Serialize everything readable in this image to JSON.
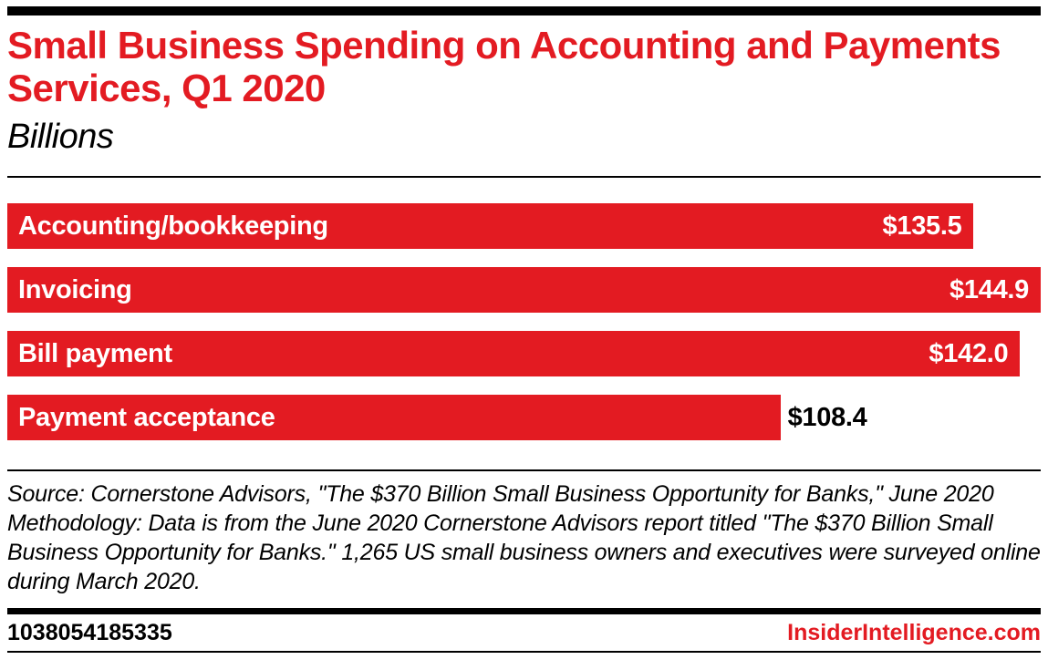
{
  "header": {
    "title": "Small Business Spending on Accounting and Payments Services, Q1 2020",
    "subtitle": "Billions"
  },
  "chart_data": {
    "type": "bar",
    "orientation": "horizontal",
    "title": "Small Business Spending on Accounting and Payments Services, Q1 2020",
    "subtitle": "Billions",
    "categories": [
      "Accounting/bookkeeping",
      "Invoicing",
      "Bill payment",
      "Payment acceptance"
    ],
    "values": [
      135.5,
      144.9,
      142.0,
      108.4
    ],
    "value_labels": [
      "$135.5",
      "$144.9",
      "$142.0",
      "$108.4"
    ],
    "value_label_position": [
      "inside",
      "inside",
      "inside",
      "outside"
    ],
    "xlim": [
      0,
      144.9
    ],
    "grid": false,
    "legend": false,
    "bar_color": "#e31b22"
  },
  "notes": {
    "source": "Source: Cornerstone Advisors, \"The $370 Billion Small Business Opportunity for Banks,\" June 2020",
    "methodology": "Methodology: Data is from the June 2020 Cornerstone Advisors report titled \"The $370 Billion Small Business Opportunity for Banks.\" 1,265 US small business owners and executives were surveyed online during March 2020."
  },
  "footer": {
    "chart_id": "1038054185335",
    "brand": "InsiderIntelligence.com"
  },
  "colors": {
    "accent_red": "#e31b22",
    "text_black": "#000000",
    "bar_text_white": "#ffffff",
    "background": "#ffffff"
  }
}
